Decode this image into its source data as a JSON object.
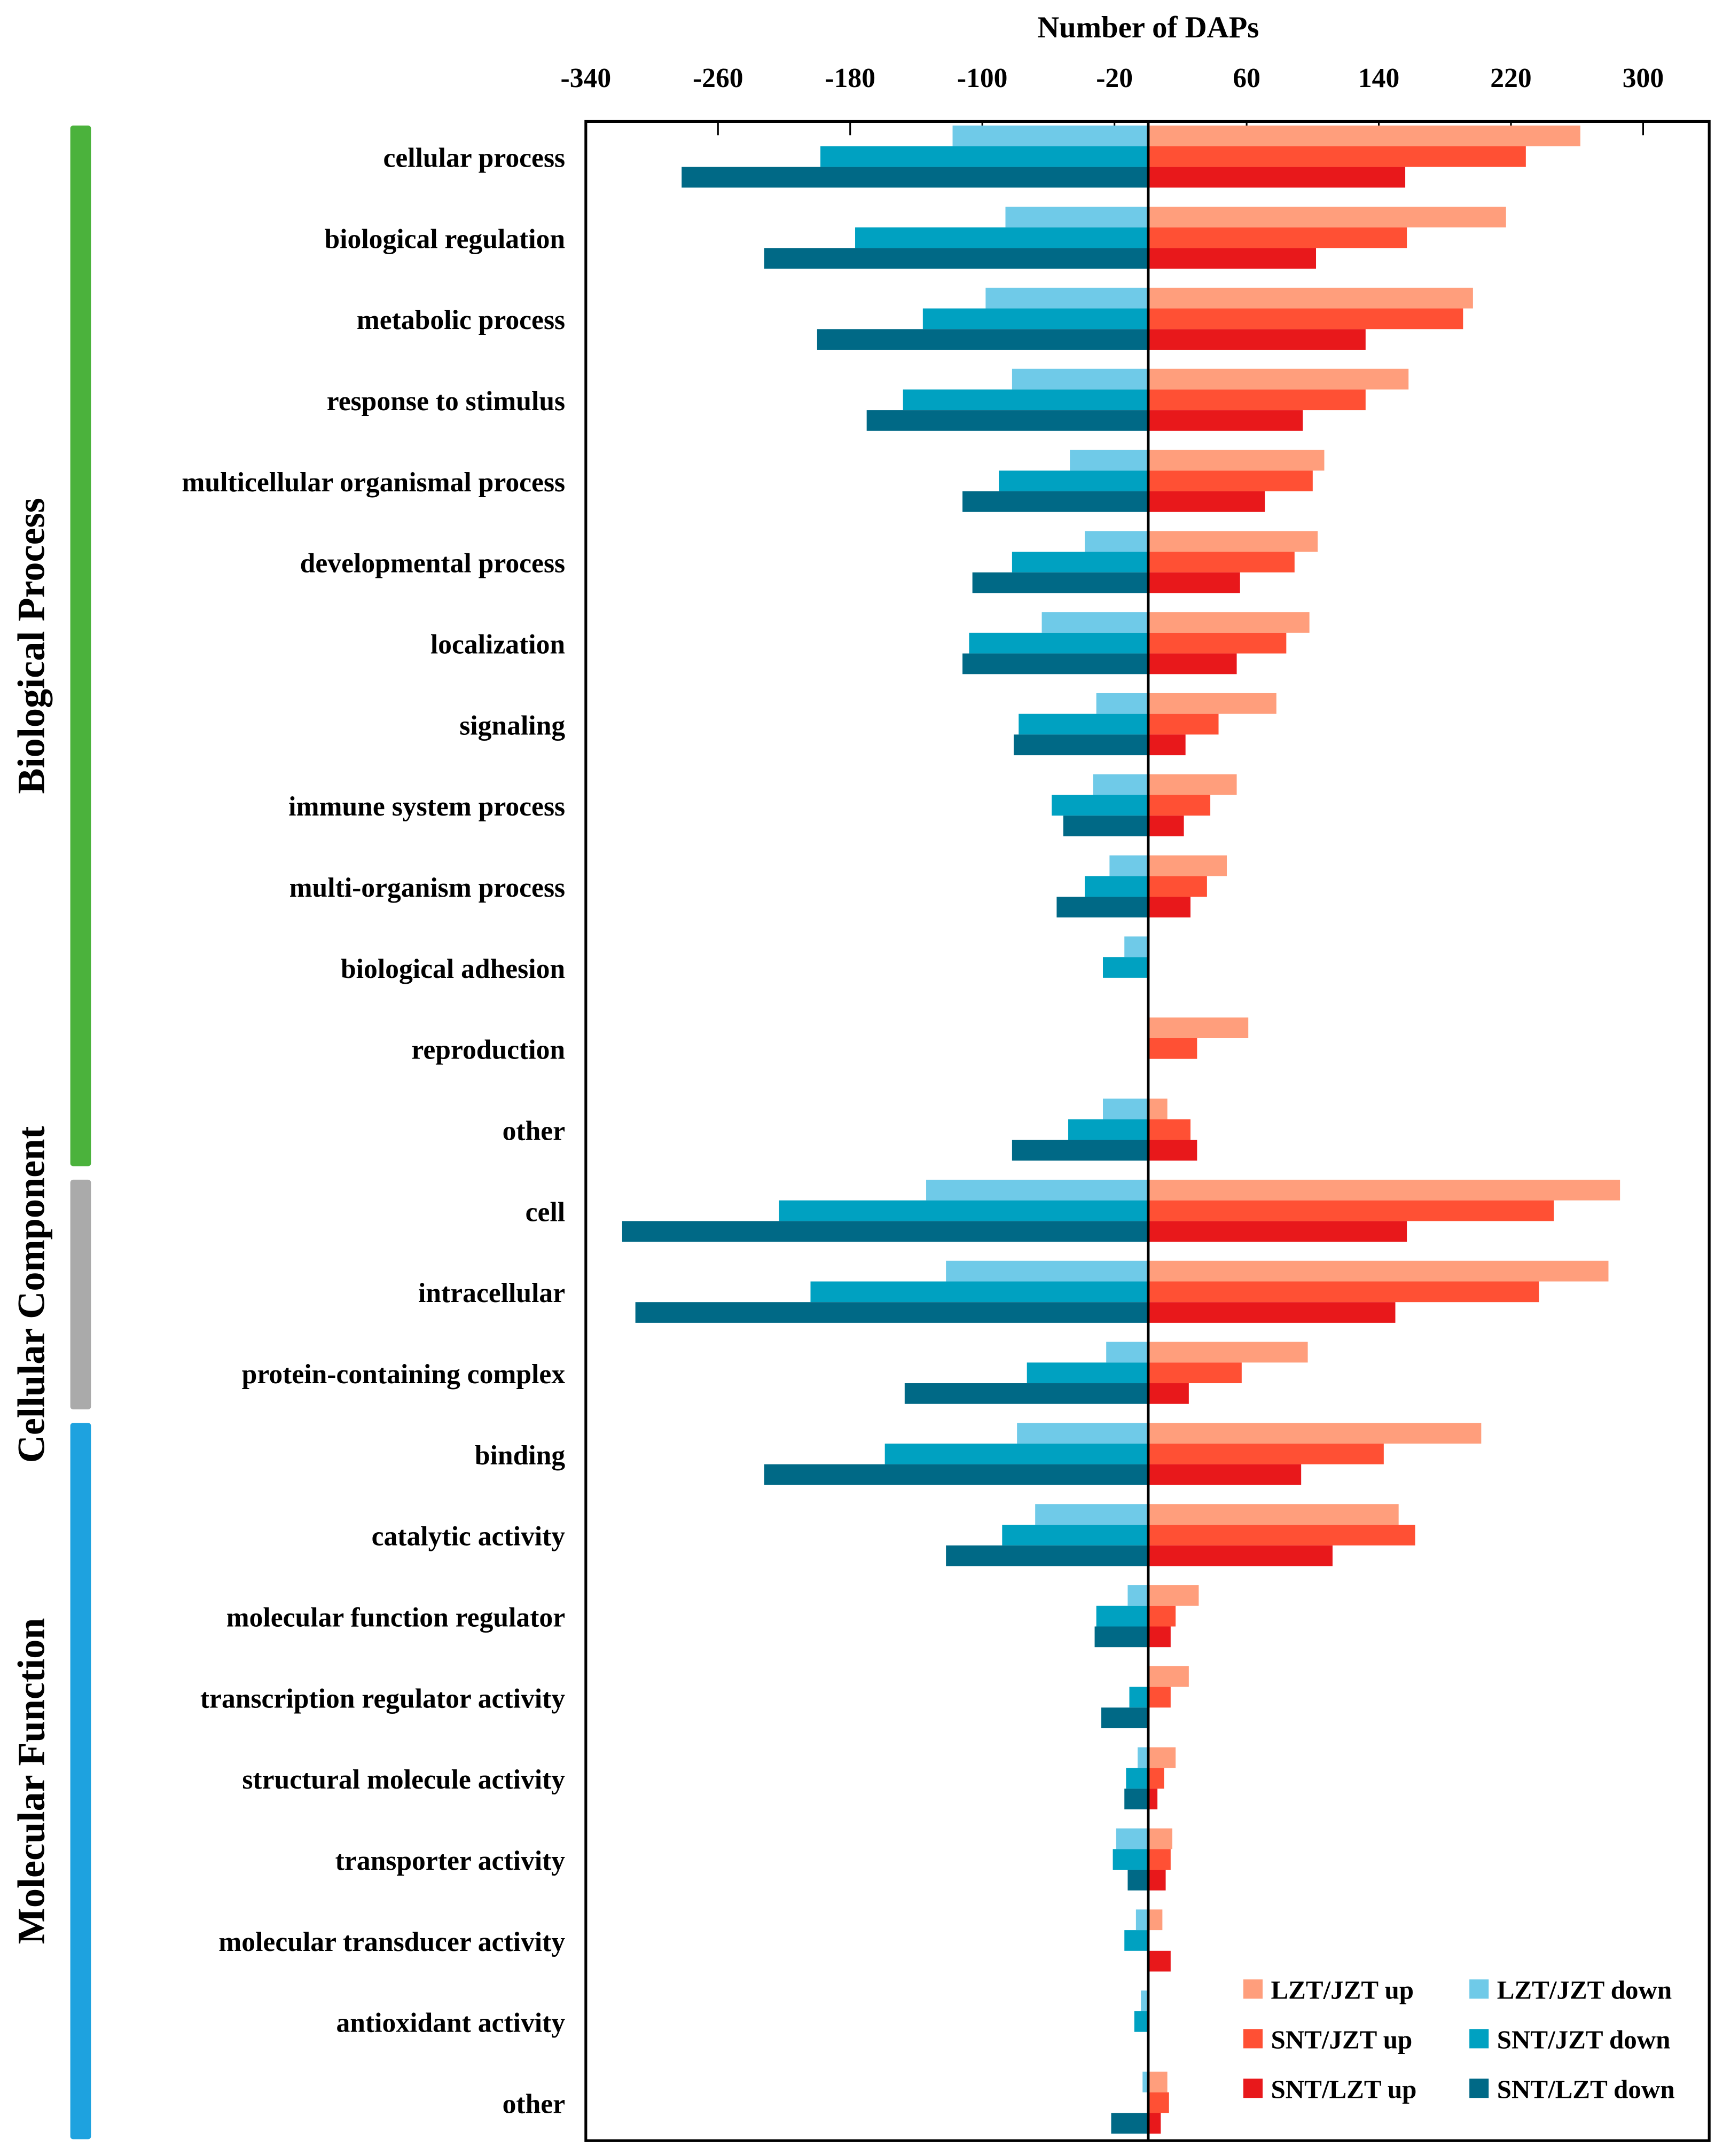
{
  "chart_data": {
    "type": "bar",
    "orientation": "horizontal",
    "title": "",
    "xlabel": "Number of DAPs",
    "ylabel": "",
    "xlim": [
      -340,
      340
    ],
    "xticks": [
      -340,
      -260,
      -180,
      -100,
      -20,
      60,
      140,
      220,
      300
    ],
    "grid": false,
    "legend_position": "bottom-right",
    "groups": [
      {
        "name": "Biological Process",
        "color": "#4bb23c",
        "count": 13
      },
      {
        "name": "Cellular Component",
        "color": "#aaaaaa",
        "count": 3
      },
      {
        "name": "Molecular Function",
        "color": "#1ea2df",
        "count": 9
      }
    ],
    "categories": [
      "cellular process",
      "biological regulation",
      "metabolic process",
      "response to stimulus",
      "multicellular organismal process",
      "developmental process",
      "localization",
      "signaling",
      "immune system process",
      "multi-organism process",
      "biological adhesion",
      "reproduction",
      "other",
      "cell",
      "intracellular",
      "protein-containing complex",
      "binding",
      "catalytic activity",
      "molecular function regulator",
      "transcription regulator activity",
      "structural molecule activity",
      "transporter activity",
      "molecular transducer activity",
      "antioxidant activity",
      "other"
    ],
    "series": [
      {
        "name": "LZT/JZT up",
        "color": "#ff9e7c",
        "values": [
          262,
          217,
          197,
          158,
          107,
          103,
          98,
          78,
          54,
          48,
          0,
          61,
          12,
          286,
          279,
          97,
          202,
          152,
          31,
          25,
          17,
          15,
          9,
          0,
          12
        ]
      },
      {
        "name": "SNT/JZT up",
        "color": "#ff5034",
        "values": [
          229,
          157,
          191,
          132,
          100,
          89,
          84,
          43,
          38,
          36,
          0,
          30,
          26,
          246,
          237,
          57,
          143,
          162,
          17,
          14,
          10,
          14,
          0,
          0,
          13
        ]
      },
      {
        "name": "SNT/LZT up",
        "color": "#e8181b",
        "values": [
          156,
          102,
          132,
          94,
          71,
          56,
          54,
          23,
          22,
          26,
          0,
          0,
          30,
          157,
          150,
          25,
          93,
          112,
          14,
          0,
          6,
          11,
          14,
          0,
          8
        ]
      },
      {
        "name": "LZT/JZT down",
        "color": "#6fcae8",
        "values": [
          -118,
          -86,
          -98,
          -82,
          -47,
          -38,
          -64,
          -31,
          -33,
          -23,
          -14,
          0,
          -27,
          -134,
          -122,
          -25,
          -79,
          -68,
          -12,
          0,
          -6,
          -19,
          -7,
          -4,
          -3
        ]
      },
      {
        "name": "SNT/JZT down",
        "color": "#00a1c1",
        "values": [
          -198,
          -177,
          -136,
          -148,
          -90,
          -82,
          -108,
          -78,
          -58,
          -38,
          -27,
          0,
          -48,
          -223,
          -204,
          -73,
          -159,
          -88,
          -31,
          -11,
          -13,
          -21,
          -14,
          -8,
          0
        ]
      },
      {
        "name": "SNT/LZT down",
        "color": "#006986",
        "values": [
          -282,
          -232,
          -200,
          -170,
          -112,
          -106,
          -112,
          -81,
          -51,
          -55,
          0,
          0,
          -82,
          -318,
          -310,
          -147,
          -232,
          -122,
          -32,
          -28,
          -14,
          -12,
          0,
          0,
          -22
        ]
      }
    ]
  }
}
